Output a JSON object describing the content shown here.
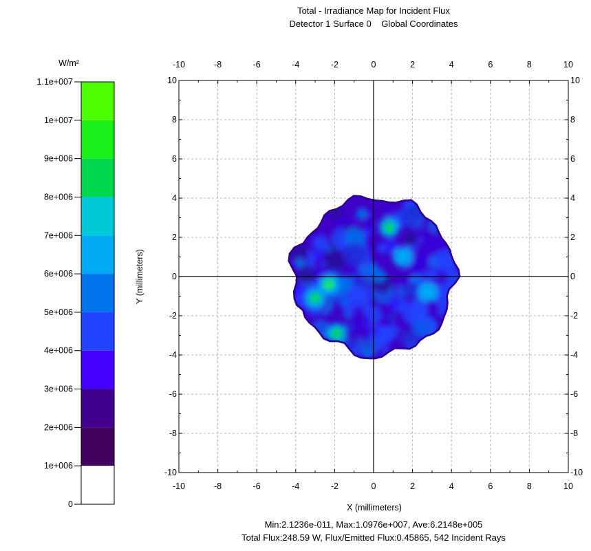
{
  "chart_data": {
    "type": "heatmap",
    "title": "Total - Irradiance Map for Incident Flux",
    "subtitle": [
      "Detector 1 Surface 0",
      "Global Coordinates"
    ],
    "xlabel": "X (millimeters)",
    "ylabel": "Y (millimeters)",
    "xlim": [
      -10,
      10
    ],
    "ylim": [
      -10,
      10
    ],
    "x_ticks": [
      "-10",
      "-8",
      "-6",
      "-4",
      "-2",
      "0",
      "2",
      "4",
      "6",
      "8",
      "10"
    ],
    "y_ticks": [
      "10",
      "8",
      "6",
      "4",
      "2",
      "0",
      "-2",
      "-4",
      "-6",
      "-8",
      "-10"
    ],
    "grid": true,
    "spot": {
      "center": [
        0.1,
        0.0
      ],
      "radius": 4.1,
      "shape": "roughly circular irradiance spot"
    },
    "hot_spots": [
      {
        "x": -3.0,
        "y": -1.1,
        "level": 8000000.0
      },
      {
        "x": -2.3,
        "y": -0.4,
        "level": 9000000.0
      },
      {
        "x": 0.8,
        "y": 2.5,
        "level": 8000000.0
      },
      {
        "x": -1.9,
        "y": -2.9,
        "level": 8000000.0
      },
      {
        "x": 1.5,
        "y": 1.0,
        "level": 6000000.0
      },
      {
        "x": 2.8,
        "y": -0.8,
        "level": 6000000.0
      }
    ],
    "colorbar": {
      "unit": "W/m²",
      "labels": [
        "1.1e+007",
        "1e+007",
        "9e+006",
        "8e+006",
        "7e+006",
        "6e+006",
        "5e+006",
        "4e+006",
        "3e+006",
        "2e+006",
        "1e+006",
        "0"
      ],
      "bands": [
        {
          "from": 10000000.0,
          "to": 11000000.0,
          "color": "#4dff00"
        },
        {
          "from": 9000000.0,
          "to": 10000000.0,
          "color": "#19f019"
        },
        {
          "from": 8000000.0,
          "to": 9000000.0,
          "color": "#00d84f"
        },
        {
          "from": 7000000.0,
          "to": 8000000.0,
          "color": "#00cad8"
        },
        {
          "from": 6000000.0,
          "to": 7000000.0,
          "color": "#00aaf5"
        },
        {
          "from": 5000000.0,
          "to": 6000000.0,
          "color": "#0073ee"
        },
        {
          "from": 4000000.0,
          "to": 5000000.0,
          "color": "#2244ff"
        },
        {
          "from": 3000000.0,
          "to": 4000000.0,
          "color": "#4400ff"
        },
        {
          "from": 2000000.0,
          "to": 3000000.0,
          "color": "#42008e"
        },
        {
          "from": 1000000.0,
          "to": 2000000.0,
          "color": "#40005e"
        },
        {
          "from": 0,
          "to": 1000000.0,
          "color": "#ffffff"
        }
      ]
    },
    "stats": {
      "line1": "Min:2.1236e-011, Max:1.0976e+007, Ave:6.2148e+005",
      "line2": "Total Flux:248.59 W, Flux/Emitted Flux:0.45865, 542 Incident Rays"
    }
  }
}
